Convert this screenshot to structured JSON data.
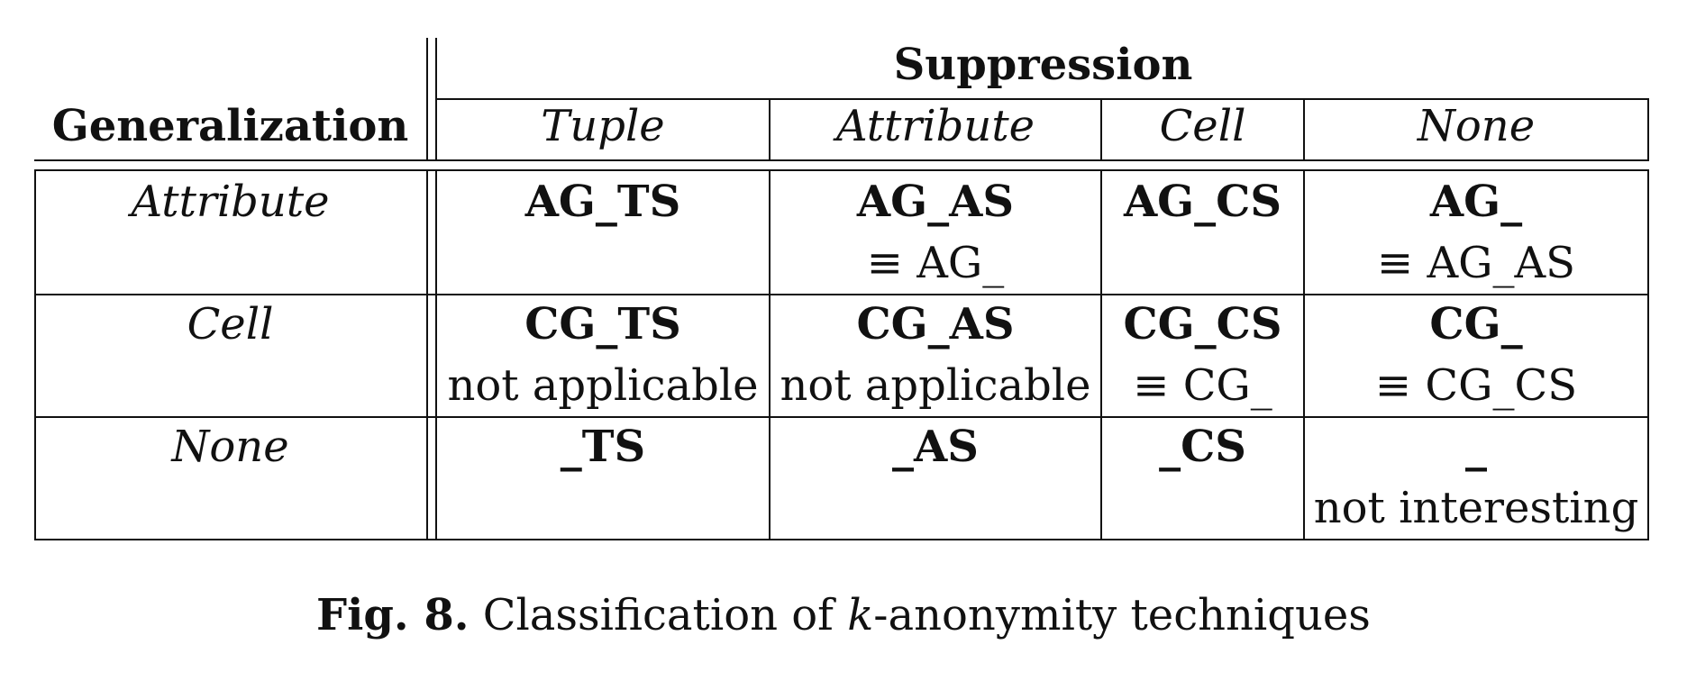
{
  "table": {
    "row_header_title": "Generalization",
    "column_group_title": "Suppression",
    "columns": [
      "Tuple",
      "Attribute",
      "Cell",
      "None"
    ],
    "rows": [
      {
        "label": "Attribute",
        "cells": [
          {
            "code": "AG_TS",
            "note": ""
          },
          {
            "code": "AG_AS",
            "note": "≡ AG_"
          },
          {
            "code": "AG_CS",
            "note": ""
          },
          {
            "code": "AG_",
            "note": "≡ AG_AS"
          }
        ]
      },
      {
        "label": "Cell",
        "cells": [
          {
            "code": "CG_TS",
            "note": "not applicable"
          },
          {
            "code": "CG_AS",
            "note": "not applicable"
          },
          {
            "code": "CG_CS",
            "note": "≡ CG_"
          },
          {
            "code": "CG_",
            "note": "≡ CG_CS"
          }
        ]
      },
      {
        "label": "None",
        "cells": [
          {
            "code": "_TS",
            "note": ""
          },
          {
            "code": "_AS",
            "note": ""
          },
          {
            "code": "_CS",
            "note": ""
          },
          {
            "code": "_",
            "note": "not interesting"
          }
        ]
      }
    ]
  },
  "caption": {
    "label": "Fig. 8.",
    "text_before": "Classification of",
    "italic_var": "k",
    "text_after": "-anonymity techniques"
  }
}
